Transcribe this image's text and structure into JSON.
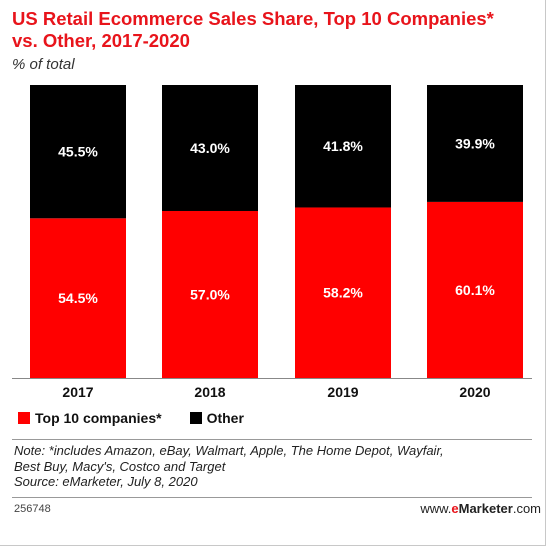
{
  "header": {
    "title_line1": "US Retail Ecommerce Sales Share, Top 10 Companies*",
    "title_line2": "vs. Other, 2017-2020",
    "subtitle": "% of total"
  },
  "chart_data": {
    "type": "bar",
    "stacked": true,
    "categories": [
      "2017",
      "2018",
      "2019",
      "2020"
    ],
    "series": [
      {
        "name": "Top 10 companies*",
        "values": [
          54.5,
          57.0,
          58.2,
          60.1
        ],
        "color": "#ff0000",
        "labels": [
          "54.5%",
          "57.0%",
          "58.2%",
          "60.1%"
        ]
      },
      {
        "name": "Other",
        "values": [
          45.5,
          43.0,
          41.8,
          39.9
        ],
        "color": "#000000",
        "labels": [
          "45.5%",
          "43.0%",
          "41.8%",
          "39.9%"
        ]
      }
    ],
    "ylim": [
      0,
      100
    ],
    "grid": false,
    "legend": "bottom-left"
  },
  "legend": {
    "top10_label": "Top 10 companies*",
    "other_label": "Other"
  },
  "notes": {
    "line1": "Note: *includes Amazon, eBay, Walmart, Apple, The Home Depot, Wayfair,",
    "line2": "Best Buy, Macy's, Costco and Target",
    "source": "Source: eMarketer, July 8, 2020"
  },
  "footer": {
    "chart_id": "256748",
    "brand_prefix": "www.",
    "brand_accent": "e",
    "brand_main": "Marketer",
    "brand_suffix": ".com"
  },
  "colors": {
    "accent": "#e8141b",
    "top10": "#ff0000",
    "other": "#000000"
  }
}
